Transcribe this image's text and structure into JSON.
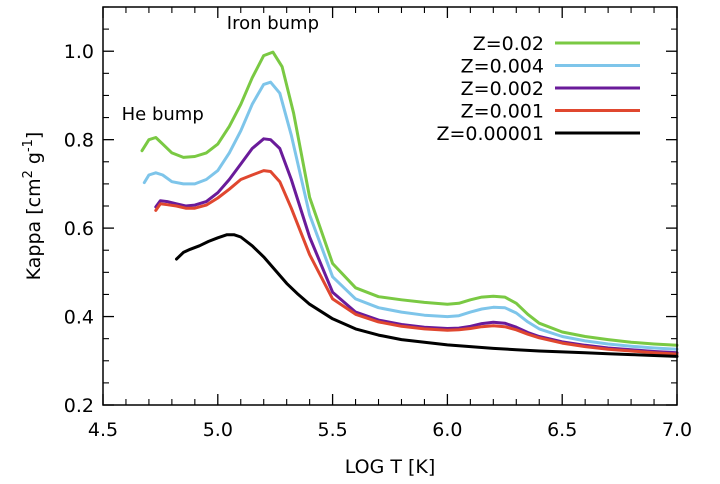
{
  "chart_data": {
    "type": "line",
    "xlabel": "LOG T [K]",
    "ylabel_parts": {
      "prefix": "Kappa [cm",
      "sup1": "2",
      "mid": " g",
      "sup2": "-1",
      "suffix": "]"
    },
    "xlim": [
      4.5,
      7.0
    ],
    "ylim": [
      0.2,
      1.1
    ],
    "xticks": [
      "4.5",
      "5.0",
      "5.5",
      "6.0",
      "6.5",
      "7.0"
    ],
    "yticks": [
      "0.2",
      "0.4",
      "0.6",
      "0.8",
      "1.0"
    ],
    "grid": false,
    "legend_position": "top-right",
    "annotations": [
      {
        "text": "Iron bump",
        "x": 5.24,
        "y": 1.05
      },
      {
        "text": "He bump",
        "x": 4.76,
        "y": 0.845
      }
    ],
    "series": [
      {
        "name": "Z=0.02",
        "color": "#7ac943",
        "x": [
          4.67,
          4.7,
          4.73,
          4.76,
          4.8,
          4.85,
          4.9,
          4.95,
          5.0,
          5.05,
          5.1,
          5.15,
          5.2,
          5.24,
          5.28,
          5.33,
          5.4,
          5.5,
          5.6,
          5.7,
          5.8,
          5.9,
          6.0,
          6.05,
          6.1,
          6.15,
          6.2,
          6.25,
          6.3,
          6.35,
          6.4,
          6.5,
          6.6,
          6.7,
          6.8,
          6.9,
          7.0
        ],
        "y": [
          0.775,
          0.8,
          0.805,
          0.79,
          0.77,
          0.76,
          0.762,
          0.77,
          0.79,
          0.83,
          0.88,
          0.94,
          0.99,
          0.998,
          0.965,
          0.86,
          0.67,
          0.52,
          0.465,
          0.445,
          0.438,
          0.432,
          0.428,
          0.43,
          0.438,
          0.444,
          0.446,
          0.444,
          0.43,
          0.405,
          0.385,
          0.365,
          0.355,
          0.348,
          0.342,
          0.338,
          0.335
        ]
      },
      {
        "name": "Z=0.004",
        "color": "#7ec5ea",
        "x": [
          4.68,
          4.7,
          4.73,
          4.76,
          4.8,
          4.85,
          4.9,
          4.95,
          5.0,
          5.05,
          5.1,
          5.15,
          5.2,
          5.23,
          5.27,
          5.32,
          5.4,
          5.5,
          5.6,
          5.7,
          5.8,
          5.9,
          6.0,
          6.05,
          6.1,
          6.15,
          6.2,
          6.25,
          6.3,
          6.35,
          6.4,
          6.5,
          6.6,
          6.7,
          6.8,
          6.9,
          7.0
        ],
        "y": [
          0.703,
          0.72,
          0.725,
          0.72,
          0.705,
          0.7,
          0.7,
          0.71,
          0.73,
          0.77,
          0.82,
          0.88,
          0.925,
          0.93,
          0.905,
          0.81,
          0.63,
          0.49,
          0.44,
          0.42,
          0.41,
          0.403,
          0.4,
          0.402,
          0.41,
          0.417,
          0.421,
          0.42,
          0.408,
          0.388,
          0.372,
          0.355,
          0.345,
          0.338,
          0.333,
          0.329,
          0.326
        ]
      },
      {
        "name": "Z=0.002",
        "color": "#6a1b9a",
        "x": [
          4.73,
          4.75,
          4.78,
          4.82,
          4.86,
          4.9,
          4.95,
          5.0,
          5.05,
          5.1,
          5.15,
          5.2,
          5.23,
          5.27,
          5.32,
          5.4,
          5.5,
          5.6,
          5.7,
          5.8,
          5.9,
          6.0,
          6.05,
          6.1,
          6.15,
          6.2,
          6.25,
          6.3,
          6.35,
          6.4,
          6.5,
          6.6,
          6.7,
          6.8,
          6.9,
          7.0
        ],
        "y": [
          0.648,
          0.662,
          0.66,
          0.655,
          0.65,
          0.652,
          0.66,
          0.68,
          0.71,
          0.745,
          0.78,
          0.802,
          0.8,
          0.78,
          0.71,
          0.58,
          0.455,
          0.41,
          0.392,
          0.382,
          0.376,
          0.373,
          0.374,
          0.378,
          0.384,
          0.387,
          0.385,
          0.376,
          0.364,
          0.355,
          0.343,
          0.335,
          0.329,
          0.325,
          0.321,
          0.318
        ]
      },
      {
        "name": "Z=0.001",
        "color": "#e0472f",
        "x": [
          4.73,
          4.75,
          4.78,
          4.82,
          4.86,
          4.9,
          4.95,
          5.0,
          5.05,
          5.1,
          5.15,
          5.2,
          5.23,
          5.27,
          5.32,
          5.4,
          5.5,
          5.6,
          5.7,
          5.8,
          5.9,
          6.0,
          6.05,
          6.1,
          6.15,
          6.2,
          6.25,
          6.3,
          6.35,
          6.4,
          6.5,
          6.6,
          6.7,
          6.8,
          6.9,
          7.0
        ],
        "y": [
          0.64,
          0.655,
          0.653,
          0.65,
          0.645,
          0.645,
          0.652,
          0.668,
          0.688,
          0.71,
          0.72,
          0.73,
          0.728,
          0.705,
          0.645,
          0.54,
          0.44,
          0.405,
          0.388,
          0.378,
          0.372,
          0.369,
          0.37,
          0.373,
          0.377,
          0.379,
          0.377,
          0.37,
          0.36,
          0.352,
          0.34,
          0.332,
          0.326,
          0.322,
          0.318,
          0.315
        ]
      },
      {
        "name": "Z=0.00001",
        "color": "#000000",
        "x": [
          4.82,
          4.85,
          4.88,
          4.92,
          4.96,
          5.0,
          5.04,
          5.07,
          5.1,
          5.15,
          5.2,
          5.25,
          5.3,
          5.35,
          5.4,
          5.5,
          5.6,
          5.7,
          5.8,
          5.9,
          6.0,
          6.1,
          6.2,
          6.3,
          6.4,
          6.5,
          6.6,
          6.7,
          6.8,
          6.9,
          7.0
        ],
        "y": [
          0.53,
          0.545,
          0.552,
          0.56,
          0.57,
          0.578,
          0.585,
          0.585,
          0.58,
          0.56,
          0.535,
          0.505,
          0.475,
          0.45,
          0.428,
          0.395,
          0.372,
          0.358,
          0.348,
          0.342,
          0.336,
          0.332,
          0.328,
          0.325,
          0.322,
          0.32,
          0.318,
          0.316,
          0.314,
          0.312,
          0.31
        ]
      }
    ]
  }
}
